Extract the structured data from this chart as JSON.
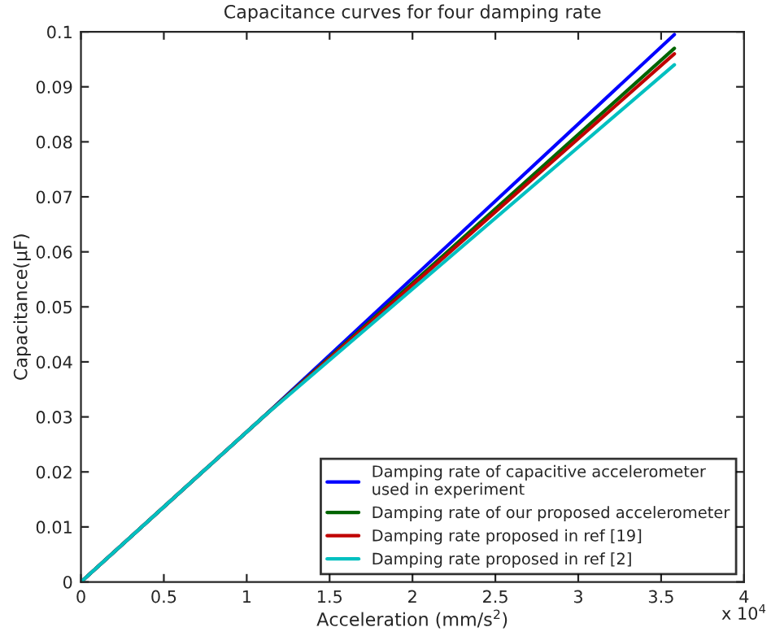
{
  "chart_data": {
    "type": "line",
    "title": "Capacitance curves for four damping rate",
    "xlabel": "Acceleration (mm/s$^{2}$)",
    "ylabel": "Capacitance(μF)",
    "annotations": [
      "x 10$^{4}$"
    ],
    "xlim": [
      0,
      4
    ],
    "xticks": [
      0,
      0.5,
      1,
      1.5,
      2,
      2.5,
      3,
      3.5,
      4
    ],
    "ylim": [
      0,
      0.1
    ],
    "yticks": [
      0,
      0.01,
      0.02,
      0.03,
      0.04,
      0.05,
      0.06,
      0.07,
      0.08,
      0.09,
      0.1
    ],
    "legend": "bottom right",
    "grid": false,
    "marker": "none",
    "line_style": "solid",
    "series": [
      {
        "name": "Damping rate of capacitive accelerometer\nused in experiment",
        "color": "#0000ff",
        "x": [
          0,
          1.1,
          3.58
        ],
        "values": [
          0,
          0.03,
          0.0995
        ]
      },
      {
        "name": "Damping rate of our proposed accelerometer",
        "color": "#006400",
        "x": [
          0,
          1.1,
          3.58
        ],
        "values": [
          0,
          0.03,
          0.097
        ]
      },
      {
        "name": "Damping rate proposed in ref [19]",
        "color": "#c00000",
        "x": [
          0,
          1.1,
          3.58
        ],
        "values": [
          0,
          0.03,
          0.096
        ]
      },
      {
        "name": "Damping rate proposed in ref [2]",
        "color": "#00c0c0",
        "x": [
          0,
          1.1,
          3.58
        ],
        "values": [
          0,
          0.03,
          0.094
        ]
      }
    ]
  }
}
